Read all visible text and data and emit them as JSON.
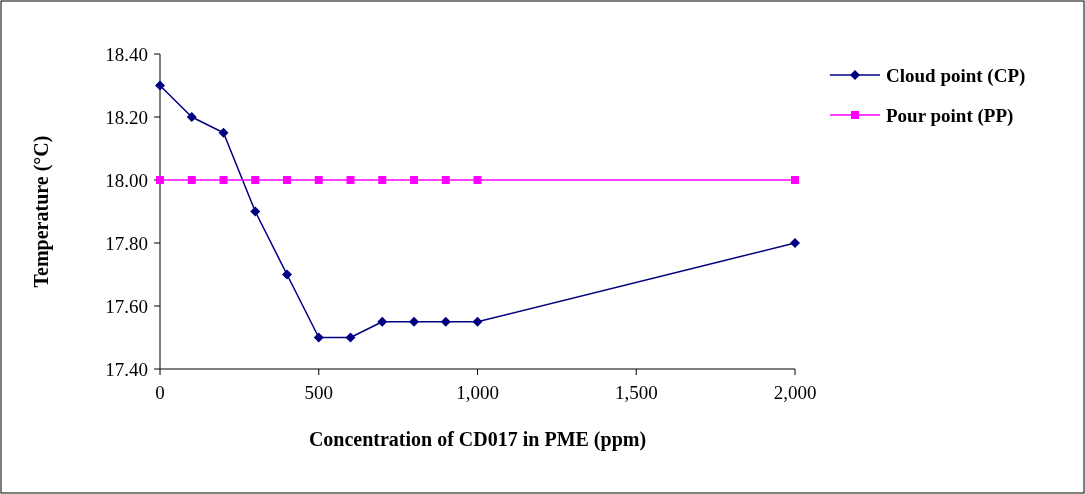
{
  "chart_data": {
    "type": "line",
    "xlabel": "Concentration of CD017 in PME (ppm)",
    "ylabel": "Temperature (°C)",
    "xlim": [
      0,
      2000
    ],
    "xticks": [
      0,
      500,
      {
        "value": 1000,
        "label": "1,000"
      },
      {
        "value": 1500,
        "label": "1,500"
      },
      {
        "value": 2000,
        "label": "2,000"
      }
    ],
    "ylim": [
      17.4,
      18.4
    ],
    "yticks": [
      {
        "value": 17.4,
        "label": "17.40"
      },
      {
        "value": 17.6,
        "label": "17.60"
      },
      {
        "value": 17.8,
        "label": "17.80"
      },
      {
        "value": 18,
        "label": "18.00"
      },
      {
        "value": 18.2,
        "label": "18.20"
      },
      {
        "value": 18.4,
        "label": "18.40"
      }
    ],
    "x": [
      0,
      100,
      200,
      300,
      400,
      500,
      600,
      700,
      800,
      900,
      1000,
      2000
    ],
    "grid": false,
    "legend": "right",
    "series": [
      {
        "name": "Cloud point (CP)",
        "color": "#000080",
        "marker": "diamond",
        "values": [
          18.3,
          18.2,
          18.15,
          17.9,
          17.7,
          17.5,
          17.5,
          17.55,
          17.55,
          17.55,
          17.55,
          17.8
        ]
      },
      {
        "name": "Pour point (PP)",
        "color": "#ff00ff",
        "marker": "square",
        "values": [
          18,
          18,
          18,
          18,
          18,
          18,
          18,
          18,
          18,
          18,
          18,
          18
        ]
      }
    ]
  }
}
